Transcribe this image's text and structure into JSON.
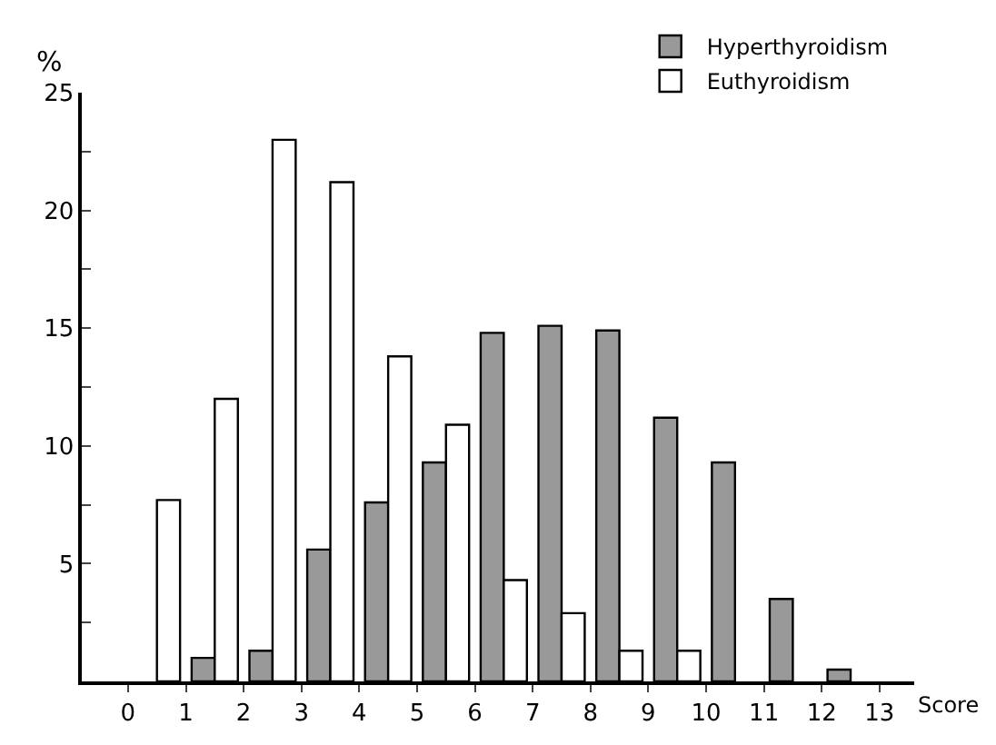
{
  "chart_data": {
    "type": "bar",
    "xlabel": "Score",
    "ylabel": "%",
    "x": [
      0.5,
      1.5,
      2.5,
      3.5,
      4.5,
      5.5,
      6.5,
      7.5,
      8.5,
      9.5,
      10.5,
      11.5,
      12.5
    ],
    "series": [
      {
        "name": "Hyperthyroidism",
        "color": "#999999",
        "values": [
          null,
          1.0,
          1.3,
          5.6,
          7.6,
          9.3,
          14.8,
          15.1,
          14.9,
          11.2,
          9.3,
          3.5,
          0.5
        ]
      },
      {
        "name": "Euthyroidism",
        "color": "#ffffff",
        "values": [
          7.7,
          12.0,
          23.0,
          21.2,
          13.8,
          10.9,
          4.3,
          2.9,
          1.3,
          1.3,
          null,
          null,
          null
        ]
      }
    ],
    "xlim": [
      -0.8,
      13.6
    ],
    "xticks": [
      0,
      1,
      2,
      3,
      4,
      5,
      6,
      7,
      8,
      9,
      10,
      11,
      12,
      13
    ],
    "ylim": [
      0,
      25
    ],
    "yticks": [
      {
        "value": 2.5,
        "label": null
      },
      5,
      {
        "value": 7.5,
        "label": null
      },
      10,
      {
        "value": 12.5,
        "label": null
      },
      15,
      {
        "value": 17.5,
        "label": null
      },
      20,
      {
        "value": 22.5,
        "label": null
      },
      25
    ],
    "grid": false,
    "legend": "top right"
  }
}
